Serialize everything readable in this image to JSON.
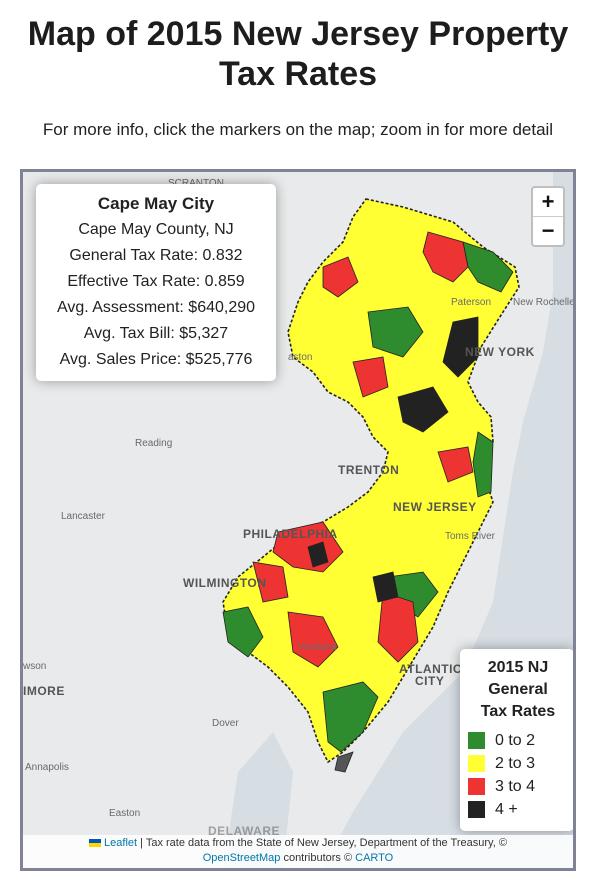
{
  "page": {
    "title_line1": "Map of 2015 New Jersey Property",
    "title_line2": "Tax Rates",
    "subtitle": "For more info, click the markers on the map; zoom in for more detail"
  },
  "zoom": {
    "in_label": "+",
    "out_label": "−"
  },
  "info_box": {
    "name": "Cape May City",
    "county": "Cape May County, NJ",
    "general_tax_rate": "General Tax Rate: 0.832",
    "effective_tax_rate": "Effective Tax Rate: 0.859",
    "avg_assessment": "Avg. Assessment: $640,290",
    "avg_tax_bill": "Avg. Tax Bill: $5,327",
    "avg_sales_price": "Avg. Sales Price: $525,776"
  },
  "legend": {
    "title_line1": "2015 NJ",
    "title_line2": "General",
    "title_line3": "Tax Rates",
    "items": [
      {
        "label": "0 to 2",
        "color": "#2e8b2e"
      },
      {
        "label": "2 to 3",
        "color": "#ffff33"
      },
      {
        "label": "3 to 4",
        "color": "#ee3333"
      },
      {
        "label": "4 +",
        "color": "#222222"
      }
    ]
  },
  "place_labels": {
    "scranton": "SCRANTON",
    "paterson": "Paterson",
    "new_rochelle": "New Rochelle",
    "new_york": "NEW YORK",
    "easton": "aston",
    "reading": "Reading",
    "trenton": "TRENTON",
    "new_jersey": "NEW JERSEY",
    "toms_river": "Toms River",
    "lancaster": "Lancaster",
    "philadelphia": "PHILADELPHIA",
    "wilmington": "WILMINGTON",
    "vineland": "Vineland",
    "atlantic_city_1": "ATLANTIC",
    "atlantic_city_2": "CITY",
    "dover": "Dover",
    "annapolis": "Annapolis",
    "easton_md": "Easton",
    "delaware": "DELAWARE",
    "baltimore": "IMORE",
    "towson": "wson"
  },
  "attribution": {
    "leaflet": "Leaflet",
    "text1": " | Tax rate data from the State of New Jersey, Department of the Treasury, © ",
    "osm": "OpenStreetMap",
    "text2": " contributors © ",
    "carto": "CARTO"
  }
}
